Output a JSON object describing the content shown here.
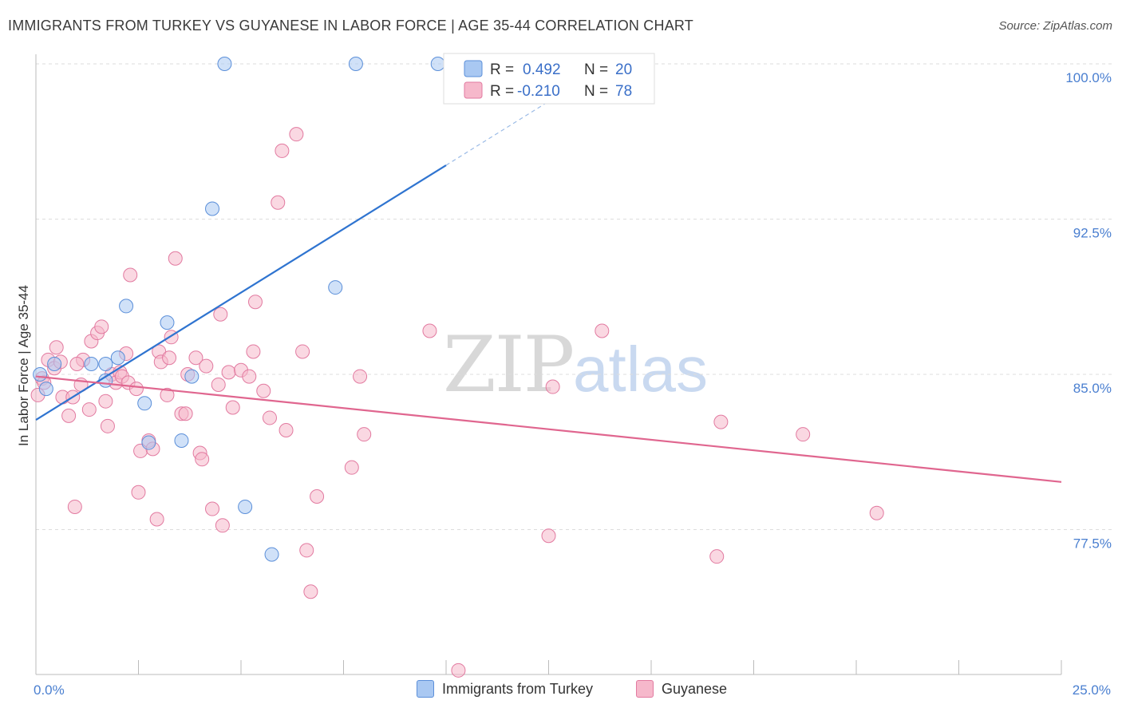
{
  "header": {
    "title": "IMMIGRANTS FROM TURKEY VS GUYANESE IN LABOR FORCE | AGE 35-44 CORRELATION CHART",
    "source": "Source: ZipAtlas.com"
  },
  "watermark": {
    "zip": "ZIP",
    "atlas": "atlas"
  },
  "colors": {
    "turkey_fill": "#a9c8f2",
    "turkey_stroke": "#5b8fd9",
    "turkey_line": "#2f74d0",
    "guyanese_fill": "#f6b8cb",
    "guyanese_stroke": "#e27aa0",
    "guyanese_line": "#e0668f",
    "tick_text": "#4a7fd0",
    "grid": "#dddddd"
  },
  "legend": {
    "rows": [
      {
        "r_label": "R = ",
        "r_value": "0.492",
        "n_label": "N = ",
        "n_value": "20"
      },
      {
        "r_label": "R = ",
        "r_value": "-0.210",
        "n_label": "N = ",
        "n_value": "78"
      }
    ]
  },
  "bottom_legend": {
    "series1": "Immigrants from Turkey",
    "series2": "Guyanese"
  },
  "chart_data": {
    "type": "scatter",
    "title": "IMMIGRANTS FROM TURKEY VS GUYANESE IN LABOR FORCE | AGE 35-44 CORRELATION CHART",
    "xlabel": "",
    "ylabel": "In Labor Force | Age 35-44",
    "xlim": [
      0,
      25
    ],
    "ylim": [
      70.5,
      101
    ],
    "x_tick_labels": [
      "0.0%",
      "25.0%"
    ],
    "y_ticks": [
      77.5,
      85.0,
      92.5,
      100.0
    ],
    "y_tick_labels": [
      "77.5%",
      "85.0%",
      "92.5%",
      "100.0%"
    ],
    "series": [
      {
        "name": "Immigrants from Turkey",
        "R": 0.492,
        "N": 20,
        "trend": {
          "x0": 0,
          "y0": 82.8,
          "x1": 10,
          "y1": 95.1,
          "dashed_to_x": 13,
          "dashed_to_y": 98.8
        },
        "points": [
          [
            0.1,
            85.0
          ],
          [
            0.25,
            84.3
          ],
          [
            0.45,
            85.5
          ],
          [
            1.35,
            85.5
          ],
          [
            1.7,
            85.5
          ],
          [
            1.7,
            84.7
          ],
          [
            2.0,
            85.8
          ],
          [
            2.2,
            88.3
          ],
          [
            2.65,
            83.6
          ],
          [
            2.75,
            81.7
          ],
          [
            3.2,
            87.5
          ],
          [
            3.55,
            81.8
          ],
          [
            3.8,
            84.9
          ],
          [
            4.3,
            93.0
          ],
          [
            4.6,
            100.0
          ],
          [
            5.1,
            78.6
          ],
          [
            5.75,
            76.3
          ],
          [
            7.3,
            89.2
          ],
          [
            7.8,
            100.0
          ],
          [
            9.8,
            100.0
          ]
        ]
      },
      {
        "name": "Guyanese",
        "R": -0.21,
        "N": 78,
        "trend": {
          "x0": 0,
          "y0": 84.9,
          "x1": 25,
          "y1": 79.8
        },
        "points": [
          [
            0.05,
            84.0
          ],
          [
            0.15,
            84.8
          ],
          [
            0.3,
            85.7
          ],
          [
            0.45,
            85.3
          ],
          [
            0.5,
            86.3
          ],
          [
            0.6,
            85.6
          ],
          [
            0.65,
            83.9
          ],
          [
            0.8,
            83.0
          ],
          [
            0.9,
            83.9
          ],
          [
            0.95,
            78.6
          ],
          [
            1.1,
            84.5
          ],
          [
            1.15,
            85.7
          ],
          [
            1.3,
            83.3
          ],
          [
            1.35,
            86.6
          ],
          [
            1.5,
            87.0
          ],
          [
            1.6,
            87.3
          ],
          [
            1.7,
            83.7
          ],
          [
            1.75,
            82.5
          ],
          [
            1.85,
            85.0
          ],
          [
            1.95,
            84.6
          ],
          [
            2.05,
            85.1
          ],
          [
            2.1,
            84.9
          ],
          [
            2.2,
            86.0
          ],
          [
            2.25,
            84.6
          ],
          [
            2.3,
            89.8
          ],
          [
            2.45,
            84.3
          ],
          [
            2.5,
            79.3
          ],
          [
            2.55,
            81.3
          ],
          [
            2.75,
            81.8
          ],
          [
            2.85,
            81.4
          ],
          [
            2.95,
            78.0
          ],
          [
            3.0,
            86.1
          ],
          [
            3.05,
            85.6
          ],
          [
            3.2,
            84.0
          ],
          [
            3.25,
            85.8
          ],
          [
            3.3,
            86.8
          ],
          [
            3.4,
            90.6
          ],
          [
            3.55,
            83.1
          ],
          [
            3.65,
            83.1
          ],
          [
            3.9,
            85.8
          ],
          [
            4.0,
            81.2
          ],
          [
            4.05,
            80.9
          ],
          [
            4.15,
            85.4
          ],
          [
            4.3,
            78.5
          ],
          [
            4.45,
            84.5
          ],
          [
            4.5,
            87.9
          ],
          [
            4.55,
            77.7
          ],
          [
            4.7,
            85.1
          ],
          [
            5.0,
            85.2
          ],
          [
            5.2,
            84.9
          ],
          [
            5.3,
            86.1
          ],
          [
            5.35,
            88.5
          ],
          [
            5.55,
            84.2
          ],
          [
            5.7,
            82.9
          ],
          [
            5.9,
            93.3
          ],
          [
            6.0,
            95.8
          ],
          [
            6.1,
            82.3
          ],
          [
            6.35,
            96.6
          ],
          [
            6.5,
            86.1
          ],
          [
            6.6,
            76.5
          ],
          [
            6.7,
            74.5
          ],
          [
            6.85,
            79.1
          ],
          [
            7.7,
            80.5
          ],
          [
            7.9,
            84.9
          ],
          [
            8.0,
            82.1
          ],
          [
            9.6,
            87.1
          ],
          [
            10.3,
            70.7
          ],
          [
            12.5,
            77.2
          ],
          [
            12.6,
            84.4
          ],
          [
            13.8,
            87.1
          ],
          [
            16.6,
            76.2
          ],
          [
            16.7,
            82.7
          ],
          [
            18.7,
            82.1
          ],
          [
            20.5,
            78.3
          ],
          [
            0.2,
            84.6
          ],
          [
            1.0,
            85.5
          ],
          [
            3.7,
            85.0
          ],
          [
            4.8,
            83.4
          ]
        ]
      }
    ]
  }
}
